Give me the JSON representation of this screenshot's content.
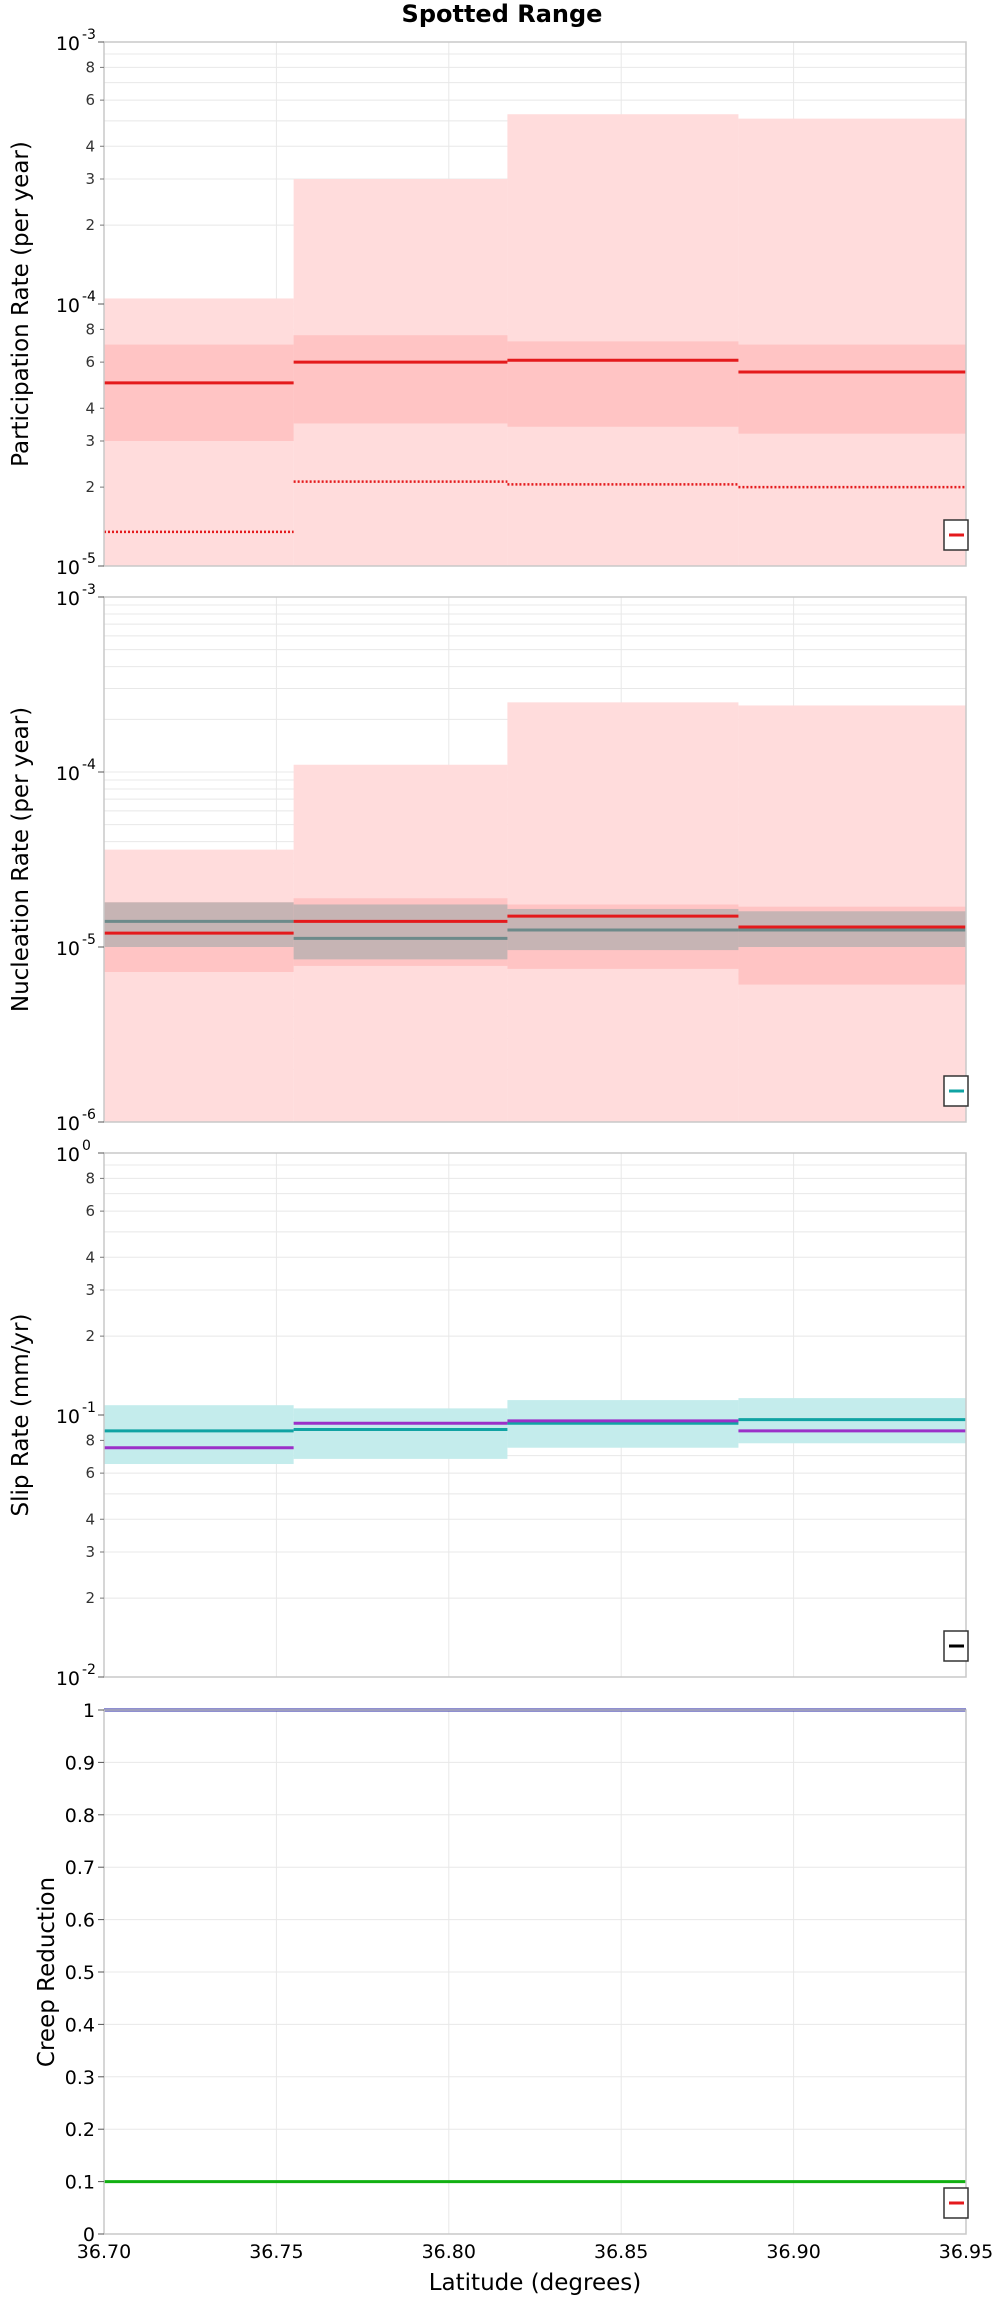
{
  "title": "Spotted Range",
  "xlabel": "Latitude (degrees)",
  "x_ticks": [
    "36.70",
    "36.75",
    "36.80",
    "36.85",
    "36.90",
    "36.95"
  ],
  "colors": {
    "red": "#e41a1c",
    "red_band_outer": "#ffdcdc",
    "red_band_inner": "#ffc4c4",
    "gray": "#6d8a8a",
    "gray_band": "#c6b4b4",
    "cyan": "#10a3a3",
    "cyan_band": "#c4ecec",
    "purple": "#9b30c8",
    "blue": "#1f1fa3",
    "green": "#12b012",
    "grid": "#e8e8e8",
    "frame": "#c8c8c8"
  },
  "chart_data": [
    {
      "type": "line",
      "step": true,
      "scale": "log",
      "ylabel": "Participation Rate (per year)",
      "ylim": [
        1e-05,
        0.001
      ],
      "y_major_ticks": [
        {
          "base": "10",
          "exp": "-5",
          "value": 1e-05
        },
        {
          "base": "10",
          "exp": "-4",
          "value": 0.0001
        },
        {
          "base": "10",
          "exp": "-3",
          "value": 0.001
        }
      ],
      "y_minor_ticks": [
        {
          "t": "2",
          "v": 2e-05
        },
        {
          "t": "3",
          "v": 3e-05
        },
        {
          "t": "4",
          "v": 4e-05
        },
        {
          "t": "6",
          "v": 6e-05
        },
        {
          "t": "8",
          "v": 8e-05
        },
        {
          "t": "2",
          "v": 0.0002
        },
        {
          "t": "3",
          "v": 0.0003
        },
        {
          "t": "4",
          "v": 0.0004
        },
        {
          "t": "6",
          "v": 0.0006
        },
        {
          "t": "8",
          "v": 0.0008
        }
      ],
      "x_edges": [
        36.7,
        36.755,
        36.817,
        36.884,
        36.95
      ],
      "bands": [
        {
          "color": "red_band_outer",
          "low": [
            1e-05,
            1e-05,
            1e-05,
            1e-05
          ],
          "high": [
            0.000105,
            0.0003,
            0.00053,
            0.00051
          ]
        },
        {
          "color": "red_band_inner",
          "low": [
            3e-05,
            3.5e-05,
            3.4e-05,
            3.2e-05
          ],
          "high": [
            7e-05,
            7.6e-05,
            7.2e-05,
            7e-05
          ]
        }
      ],
      "series": [
        {
          "color": "red",
          "style": "solid",
          "values": [
            5e-05,
            6e-05,
            6.1e-05,
            5.5e-05
          ]
        },
        {
          "color": "red",
          "style": "dotted",
          "values": [
            1.35e-05,
            2.1e-05,
            2.05e-05,
            2e-05
          ]
        }
      ],
      "legend_swatch": "red"
    },
    {
      "type": "line",
      "step": true,
      "scale": "log",
      "ylabel": "Nucleation Rate (per year)",
      "ylim": [
        1e-06,
        0.001
      ],
      "y_major_ticks": [
        {
          "base": "10",
          "exp": "-6",
          "value": 1e-06
        },
        {
          "base": "10",
          "exp": "-5",
          "value": 1e-05
        },
        {
          "base": "10",
          "exp": "-4",
          "value": 0.0001
        },
        {
          "base": "10",
          "exp": "-3",
          "value": 0.001
        }
      ],
      "y_minor_ticks": [],
      "x_edges": [
        36.7,
        36.755,
        36.817,
        36.884,
        36.95
      ],
      "bands": [
        {
          "color": "red_band_outer",
          "low": [
            1e-06,
            1e-06,
            1e-06,
            1e-06
          ],
          "high": [
            3.6e-05,
            0.00011,
            0.00025,
            0.00024
          ]
        },
        {
          "color": "red_band_inner",
          "low": [
            7.2e-06,
            7.8e-06,
            7.5e-06,
            6.1e-06
          ],
          "high": [
            1.8e-05,
            1.9e-05,
            1.75e-05,
            1.7e-05
          ]
        },
        {
          "color": "gray_band",
          "low": [
            1e-05,
            8.5e-06,
            9.6e-06,
            1e-05
          ],
          "high": [
            1.8e-05,
            1.75e-05,
            1.65e-05,
            1.6e-05
          ]
        }
      ],
      "series": [
        {
          "color": "gray",
          "style": "solid",
          "values": [
            1.4e-05,
            1.12e-05,
            1.25e-05,
            1.25e-05
          ]
        },
        {
          "color": "red",
          "style": "solid",
          "values": [
            1.2e-05,
            1.4e-05,
            1.5e-05,
            1.3e-05
          ]
        }
      ],
      "legend_swatch": "cyan"
    },
    {
      "type": "line",
      "step": true,
      "scale": "log",
      "ylabel": "Slip Rate (mm/yr)",
      "ylim": [
        0.01,
        1
      ],
      "y_major_ticks": [
        {
          "base": "10",
          "exp": "-2",
          "value": 0.01
        },
        {
          "base": "10",
          "exp": "-1",
          "value": 0.1
        },
        {
          "base": "10",
          "exp": "0",
          "value": 1
        }
      ],
      "y_minor_ticks": [
        {
          "t": "2",
          "v": 0.02
        },
        {
          "t": "3",
          "v": 0.03
        },
        {
          "t": "4",
          "v": 0.04
        },
        {
          "t": "6",
          "v": 0.06
        },
        {
          "t": "8",
          "v": 0.08
        },
        {
          "t": "2",
          "v": 0.2
        },
        {
          "t": "3",
          "v": 0.3
        },
        {
          "t": "4",
          "v": 0.4
        },
        {
          "t": "6",
          "v": 0.6
        },
        {
          "t": "8",
          "v": 0.8
        }
      ],
      "x_edges": [
        36.7,
        36.755,
        36.817,
        36.884,
        36.95
      ],
      "bands": [
        {
          "color": "cyan_band",
          "low": [
            0.065,
            0.068,
            0.075,
            0.078
          ],
          "high": [
            0.109,
            0.106,
            0.114,
            0.116
          ]
        }
      ],
      "series": [
        {
          "color": "cyan",
          "style": "solid",
          "values": [
            0.087,
            0.088,
            0.093,
            0.096
          ]
        },
        {
          "color": "purple",
          "style": "solid",
          "values": [
            0.075,
            0.093,
            0.095,
            0.087
          ]
        }
      ],
      "legend_swatch": "black"
    },
    {
      "type": "line",
      "step": false,
      "scale": "linear",
      "ylabel": "Creep Reduction",
      "ylim": [
        0,
        1
      ],
      "y_ticks": [
        "0",
        "0.1",
        "0.2",
        "0.3",
        "0.4",
        "0.5",
        "0.6",
        "0.7",
        "0.8",
        "0.9",
        "1"
      ],
      "x_edges": [
        36.7,
        36.95
      ],
      "bands": [],
      "series": [
        {
          "color": "blue",
          "style": "solid",
          "values": [
            1.0
          ]
        },
        {
          "color": "green",
          "style": "solid",
          "values": [
            0.1
          ]
        }
      ],
      "legend_swatch": "red"
    }
  ]
}
